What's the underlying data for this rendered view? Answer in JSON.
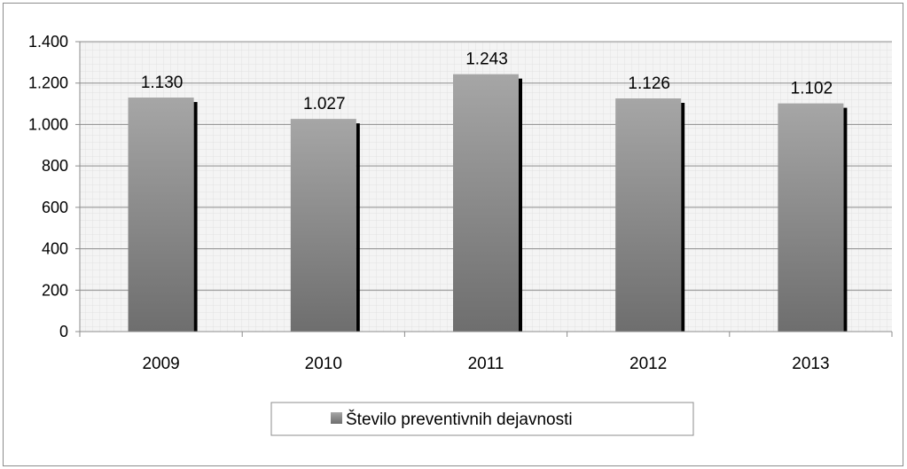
{
  "chart_data": {
    "type": "bar",
    "categories": [
      "2009",
      "2010",
      "2011",
      "2012",
      "2013"
    ],
    "series": [
      {
        "name": "Število preventivnih dejavnosti",
        "values": [
          1130,
          1027,
          1243,
          1126,
          1102
        ]
      }
    ],
    "data_labels": [
      "1.130",
      "1.027",
      "1.243",
      "1.126",
      "1.102"
    ],
    "y_ticks": [
      0,
      200,
      400,
      600,
      800,
      1000,
      1200,
      1400
    ],
    "y_tick_labels": [
      "0",
      "200",
      "400",
      "600",
      "800",
      "1.000",
      "1.200",
      "1.400"
    ],
    "ylim": [
      0,
      1400
    ],
    "grid": true,
    "legend_position": "bottom",
    "colors": {
      "bar_top": "#a6a6a6",
      "bar_bottom": "#6e6e6e",
      "shadow": "#000000",
      "gridline": "#8c8c8c",
      "minor_grid": "#e4e4e4",
      "plot_bg": "#f4f4f4"
    }
  }
}
